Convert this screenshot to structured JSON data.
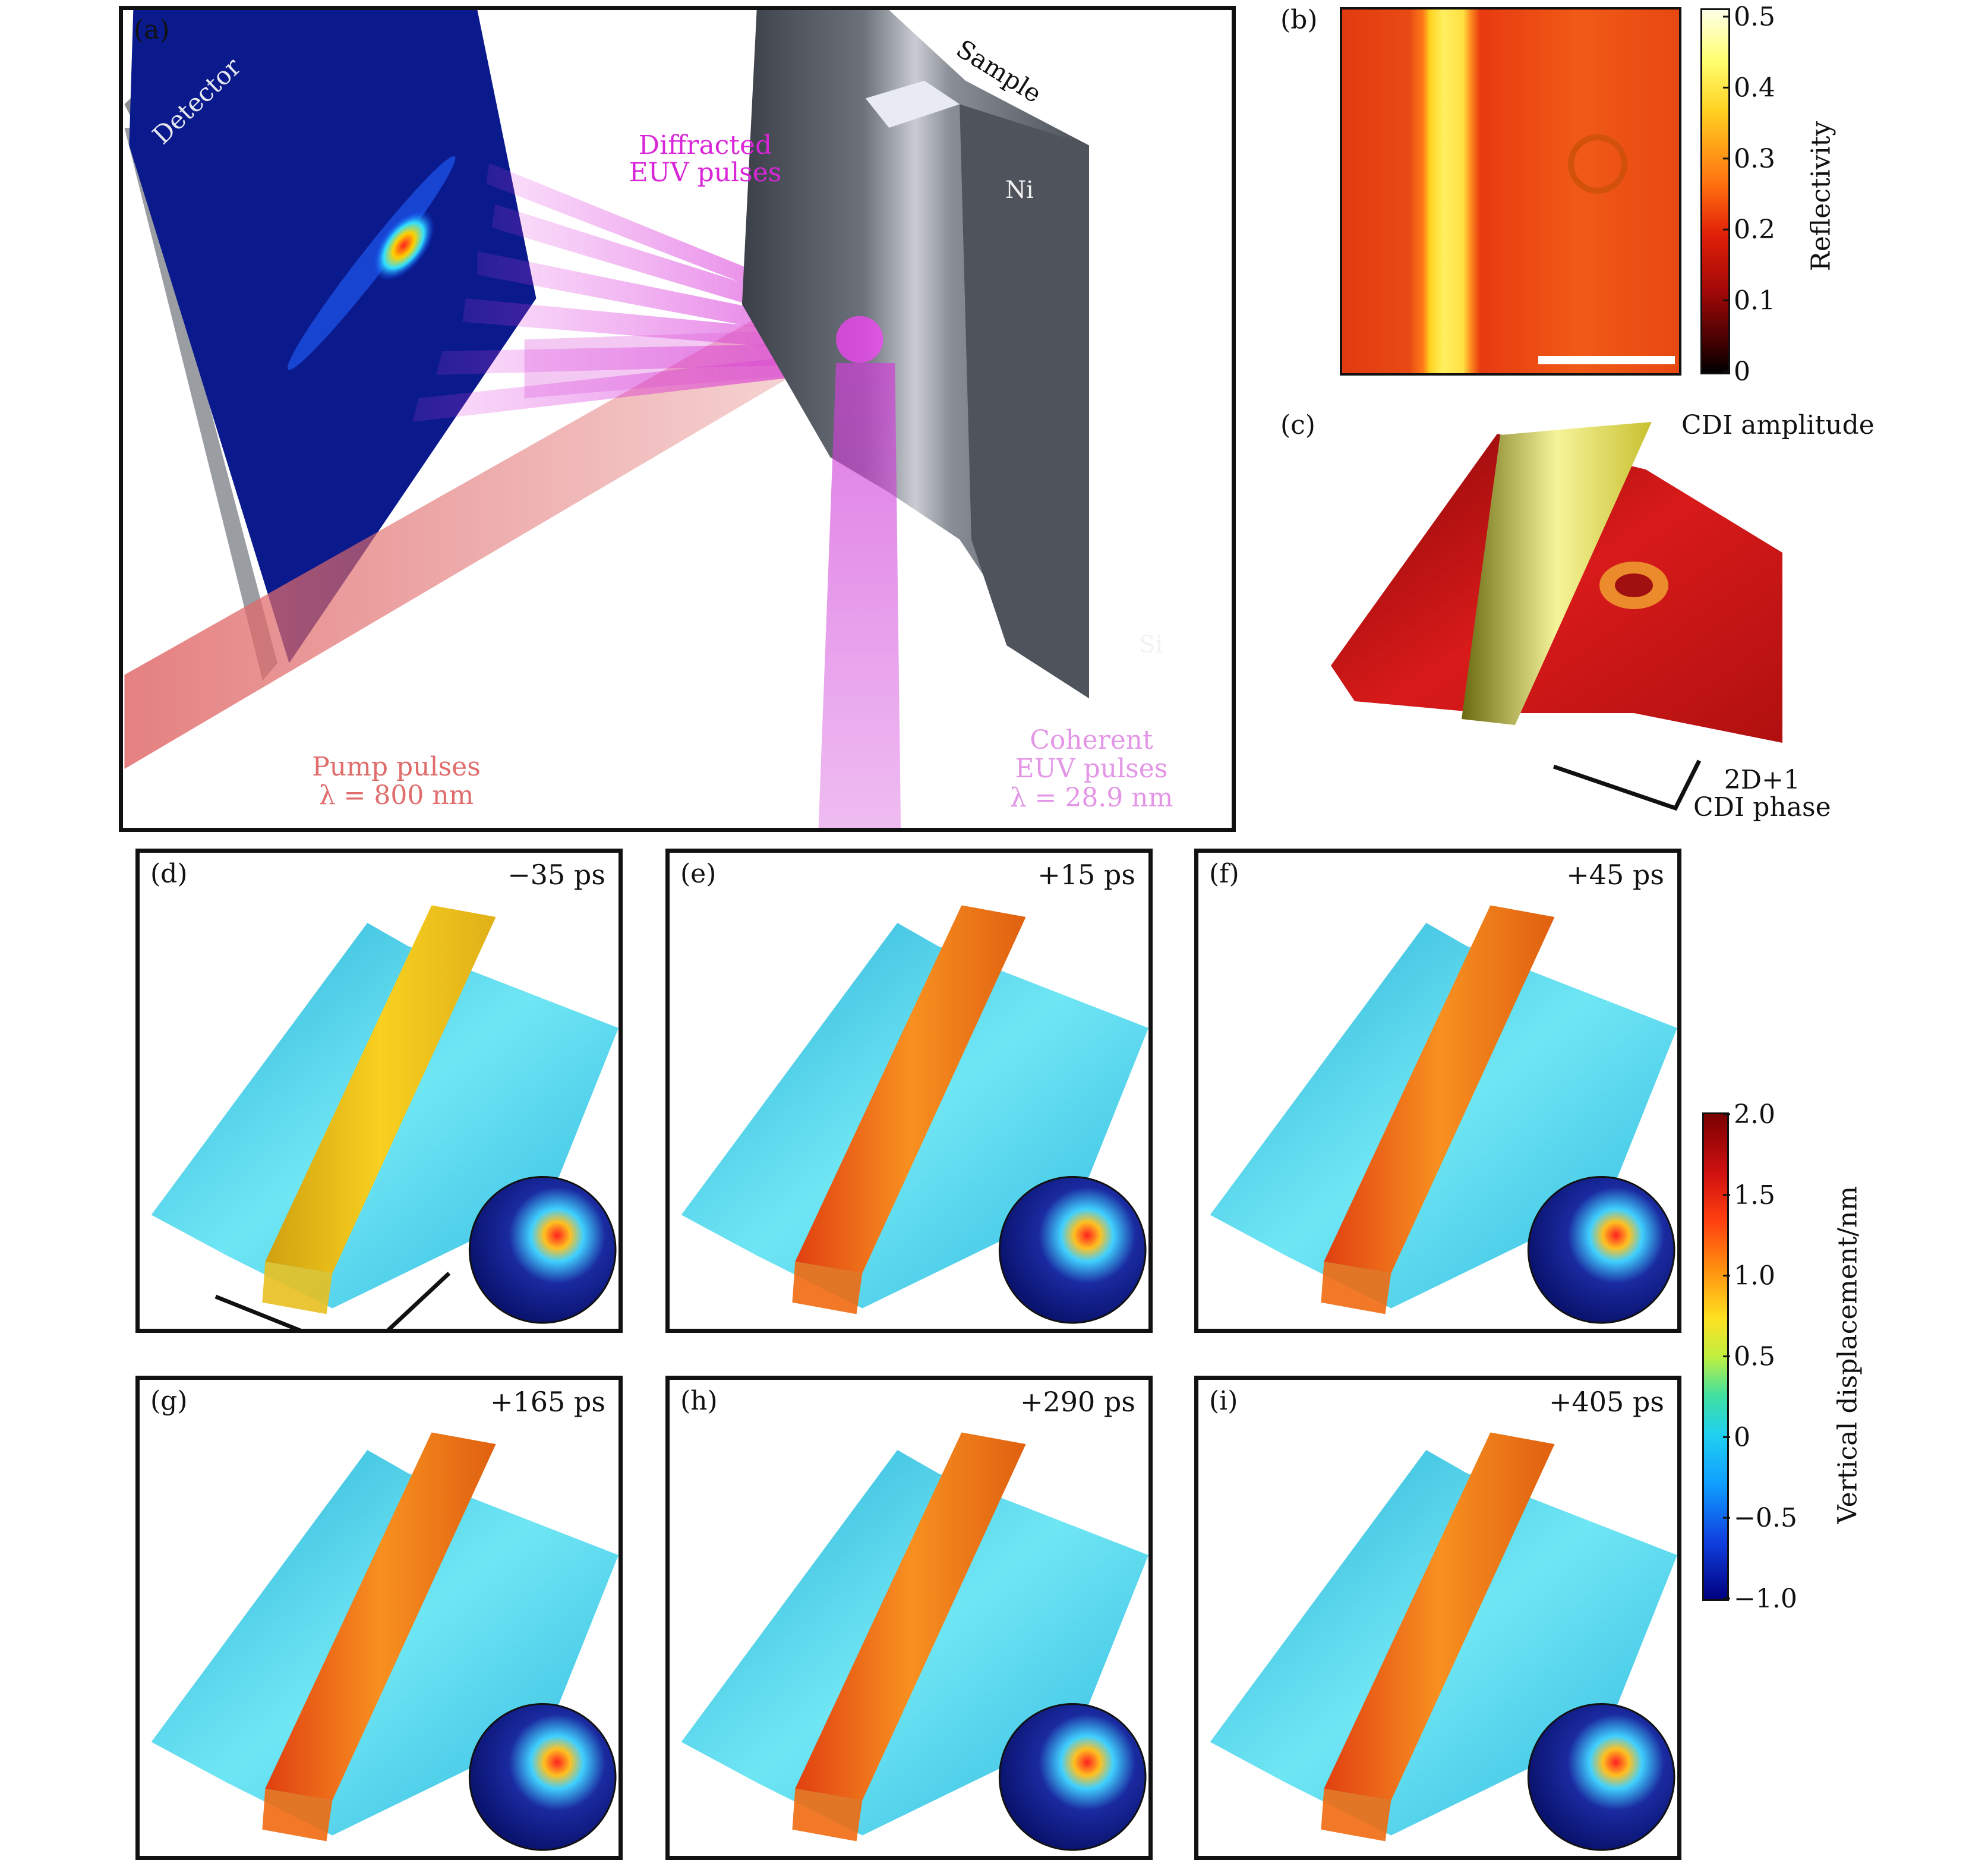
{
  "panels": {
    "a": {
      "label": "(a)",
      "detector": "Detector",
      "diffracted": [
        "Diffracted",
        "EUV pulses"
      ],
      "sample": "Sample",
      "ni": "Ni",
      "si": "Si",
      "pump": [
        "Pump pulses",
        "λ = 800 nm"
      ],
      "coherent": [
        "Coherent",
        "EUV pulses",
        "λ = 28.9 nm"
      ]
    },
    "b": {
      "label": "(b)",
      "colorbar_title": "Reflectivity",
      "ticks": [
        "0.5",
        "0.4",
        "0.3",
        "0.2",
        "0.1",
        "0"
      ]
    },
    "c": {
      "label": "(c)",
      "amp": "CDI amplitude",
      "phase": [
        "2D+1",
        "CDI phase"
      ]
    },
    "frames": [
      {
        "label": "(d)",
        "time": "−35 ps"
      },
      {
        "label": "(e)",
        "time": "+15 ps"
      },
      {
        "label": "(f)",
        "time": "+45 ps"
      },
      {
        "label": "(g)",
        "time": "+165 ps"
      },
      {
        "label": "(h)",
        "time": "+290 ps"
      },
      {
        "label": "(i)",
        "time": "+405 ps"
      }
    ],
    "colorbar2": {
      "title": "Vertical displacement/nm",
      "ticks": [
        "2.0",
        "1.5",
        "1.0",
        "0.5",
        "0",
        "−0.5",
        "−1.0"
      ]
    }
  },
  "colors": {
    "euv": "#d826d8",
    "pump": "#e07070",
    "detector_bg": "#0a1a8c",
    "surface_cyan": "#4fd8ee",
    "surface_orange": "#f08a1a"
  }
}
